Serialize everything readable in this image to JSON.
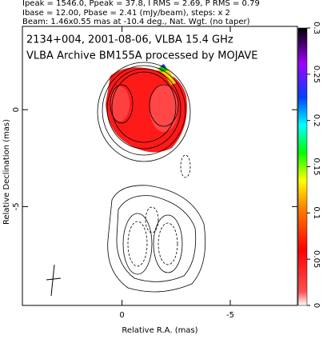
{
  "chart_data": {
    "type": "image",
    "header": [
      "Ipeak = 1546.0, Ppeak = 37.8, I RMS = 2.69, P RMS = 0.79",
      "Ibase = 12.00, Pbase = 2.41 (mJy/beam), steps: x 2",
      "Beam: 1.46x0.55 mas at -10.4 deg., Nat. Wgt. (no taper)"
    ],
    "title": "2134+004, 2001-08-06, VLBA 15.4 GHz",
    "subtitle": "VLBA Archive BM155A processed by MOJAVE",
    "xlabel": "Relative R.A. (mas)",
    "ylabel": "Relative Declination (mas)",
    "xlim": [
      4.6,
      -8.1
    ],
    "xticks": [
      0,
      -5
    ],
    "ylim": [
      -10.1,
      4.3
    ],
    "yticks": [
      0,
      -5
    ],
    "colorbar": {
      "lim": [
        0,
        0.3
      ],
      "ticks": [
        0,
        0.05,
        0.1,
        0.15,
        0.2,
        0.25,
        0.3
      ]
    }
  }
}
